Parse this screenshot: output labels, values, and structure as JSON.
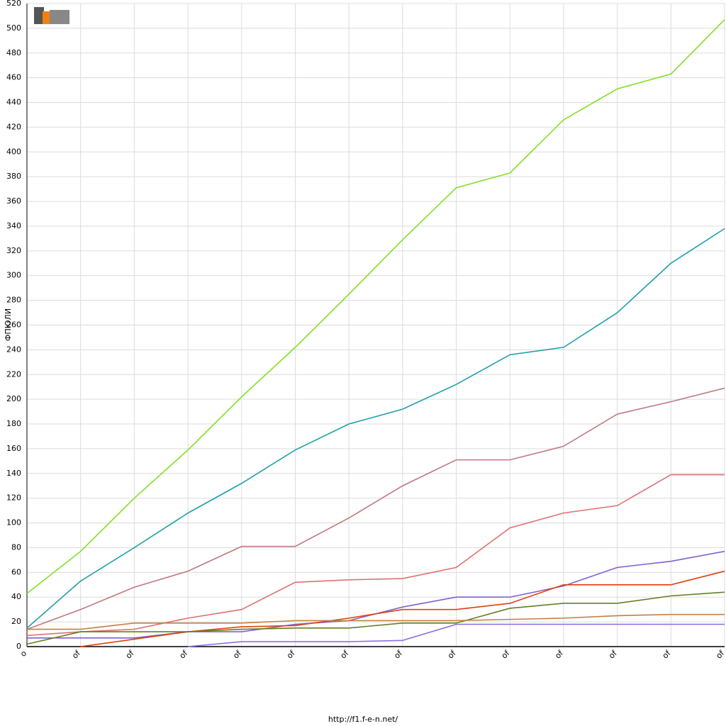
{
  "chart_data": {
    "type": "line",
    "y_label": "ФПЮЛИ",
    "footer": "http://f1.f-e-n.net/",
    "categories": [
      "o",
      "of",
      "of",
      "of",
      "of",
      "of",
      "of",
      "of",
      "of",
      "of",
      "of",
      "of",
      "of",
      "of"
    ],
    "ylim": [
      0,
      520
    ],
    "yticks": [
      0,
      20,
      40,
      60,
      80,
      100,
      120,
      140,
      160,
      180,
      200,
      220,
      240,
      260,
      280,
      300,
      320,
      340,
      360,
      380,
      400,
      420,
      440,
      460,
      480,
      500,
      520
    ],
    "grid": true,
    "series": [
      {
        "color": "#80e020",
        "values": [
          43,
          77,
          120,
          159,
          202,
          242,
          285,
          329,
          371,
          383,
          426,
          451,
          463,
          507
        ]
      },
      {
        "color": "#20a0a8",
        "values": [
          15,
          53,
          80,
          108,
          132,
          159,
          180,
          192,
          212,
          236,
          242,
          270,
          310,
          338
        ]
      },
      {
        "color": "#c07880",
        "values": [
          14,
          30,
          48,
          61,
          81,
          81,
          104,
          130,
          151,
          151,
          162,
          188,
          198,
          209
        ]
      },
      {
        "color": "#e07070",
        "values": [
          9,
          12,
          14,
          23,
          30,
          52,
          54,
          55,
          64,
          96,
          108,
          114,
          139,
          139
        ]
      },
      {
        "color": "#8060d0",
        "values": [
          7,
          7,
          7,
          12,
          12,
          18,
          21,
          32,
          40,
          40,
          49,
          64,
          69,
          77
        ]
      },
      {
        "color": "#e04010",
        "values": [
          null,
          0,
          6,
          12,
          16,
          17,
          23,
          30,
          30,
          35,
          50,
          50,
          50,
          61
        ]
      },
      {
        "color": "#608020",
        "values": [
          2,
          12,
          12,
          12,
          14,
          15,
          15,
          19,
          19,
          31,
          35,
          35,
          41,
          44
        ]
      },
      {
        "color": "#c08040",
        "values": [
          14,
          14,
          19,
          19,
          19,
          21,
          21,
          21,
          21,
          22,
          23,
          25,
          26,
          26
        ]
      },
      {
        "color": "#9070e0",
        "values": [
          null,
          null,
          null,
          0,
          4,
          4,
          4,
          5,
          18,
          18,
          18,
          18,
          18,
          18
        ]
      }
    ]
  }
}
